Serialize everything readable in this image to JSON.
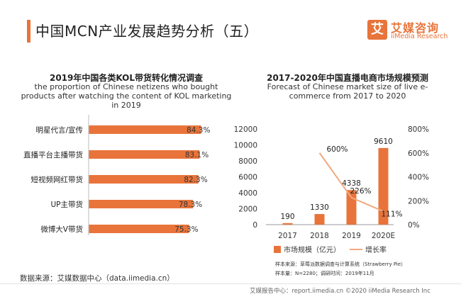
{
  "page": {
    "title": "中国MCN产业发展趋势分析（五）",
    "logo_mark": "艾",
    "logo_cn": "艾媒咨询",
    "logo_en": "iiMedia Research"
  },
  "chart_data": [
    {
      "type": "bar",
      "orientation": "horizontal",
      "title": "2019年中国各类KOL带货转化情况调查",
      "subtitle": "the proportion of Chinese netizens who bought products after watching the content of KOL marketing in 2019",
      "categories": [
        "明星代言/宣传",
        "直播平台主播带货",
        "短视频网红带货",
        "UP主带货",
        "微博大V带货"
      ],
      "values": [
        84.3,
        83.1,
        82.3,
        78.3,
        75.3
      ],
      "labels": [
        "84.3%",
        "83.1%",
        "82.3%",
        "78.3%",
        "75.3%"
      ],
      "xlim": [
        0,
        100
      ],
      "grid": false,
      "colors": {
        "bar": "#e8743b"
      }
    },
    {
      "type": "bar",
      "title": "2017-2020年中国直播电商市场规模预测",
      "subtitle": "Forecast of Chinese market size of live e-commerce from 2017 to 2020",
      "categories": [
        "2017",
        "2018",
        "2019",
        "2020E"
      ],
      "series": [
        {
          "name": "市场规模（亿元）",
          "type": "bar",
          "values": [
            190,
            1330,
            4338,
            9610
          ],
          "labels": [
            "190",
            "1330",
            "4338",
            "9610"
          ],
          "axis": "left"
        },
        {
          "name": "增长率",
          "type": "line",
          "values": [
            null,
            600,
            226,
            111
          ],
          "labels": [
            "",
            "600%",
            "226%",
            "111%"
          ],
          "axis": "right"
        }
      ],
      "y_left": {
        "ylim": [
          0,
          12000
        ],
        "ticks": [
          "0",
          "2000",
          "4000",
          "6000",
          "8000",
          "10000",
          "12000"
        ]
      },
      "y_right": {
        "ylim": [
          0,
          800
        ],
        "ticks": [
          "0%",
          "200%",
          "400%",
          "600%",
          "800%"
        ]
      },
      "legend_position": "bottom",
      "grid": false,
      "colors": {
        "bar": "#e8743b",
        "line": "#f2a97f"
      }
    }
  ],
  "source_left": "数据来源：艾媒数据中心（data.iimedia.cn）",
  "notes": {
    "line1": "样本来源：草莓派数据调查与计算系统（Strawberry Pie）",
    "line2": "样本量：N=2280；调研时间：2019年11月"
  },
  "footer": "艾媒报告中心：report.iimedia.cn ©2020 iiMedia Research Inc"
}
